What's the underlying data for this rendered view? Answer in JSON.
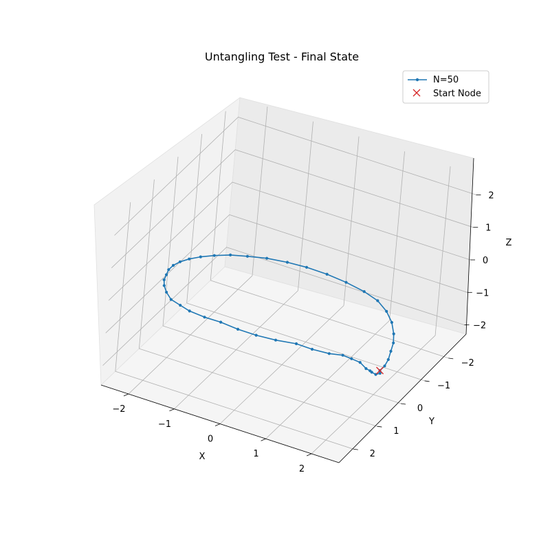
{
  "chart_data": {
    "type": "line3d",
    "title": "Untangling Test - Final State",
    "xlabel": "X",
    "ylabel": "Y",
    "zlabel": "Z",
    "xlim": [
      -2.6,
      2.6
    ],
    "ylim": [
      -2.6,
      2.6
    ],
    "zlim": [
      -2.6,
      2.6
    ],
    "x_ticks": [
      "−2",
      "−1",
      "0",
      "1",
      "2"
    ],
    "y_ticks": [
      "−2",
      "−1",
      "0",
      "1",
      "2"
    ],
    "z_ticks": [
      "−2",
      "−1",
      "0",
      "1",
      "2"
    ],
    "grid": true,
    "legend_position": "top-right",
    "colors": {
      "line": "#1f77b4",
      "start": "#d62728",
      "pane": "#f2f2f2",
      "grid": "#b0b0b0"
    },
    "series": [
      {
        "name": "N=50",
        "marker": "dot",
        "points": [
          [
            2.0,
            -0.2,
            -2.0
          ],
          [
            2.1,
            0.0,
            -1.9
          ],
          [
            2.15,
            0.3,
            -1.7
          ],
          [
            2.2,
            0.6,
            -1.4
          ],
          [
            2.3,
            0.9,
            -1.1
          ],
          [
            2.35,
            1.2,
            -0.8
          ],
          [
            2.35,
            1.5,
            -0.4
          ],
          [
            2.3,
            1.8,
            -0.1
          ],
          [
            2.2,
            2.0,
            0.1
          ],
          [
            2.0,
            2.2,
            0.2
          ],
          [
            1.7,
            2.35,
            0.3
          ],
          [
            1.4,
            2.45,
            0.4
          ],
          [
            1.0,
            2.55,
            0.4
          ],
          [
            0.6,
            2.6,
            0.4
          ],
          [
            0.2,
            2.6,
            0.4
          ],
          [
            -0.2,
            2.55,
            0.4
          ],
          [
            -0.6,
            2.45,
            0.3
          ],
          [
            -1.0,
            2.3,
            0.2
          ],
          [
            -1.3,
            2.1,
            0.1
          ],
          [
            -1.6,
            1.9,
            0.0
          ],
          [
            -1.85,
            1.6,
            -0.1
          ],
          [
            -2.05,
            1.3,
            -0.2
          ],
          [
            -2.2,
            1.0,
            -0.3
          ],
          [
            -2.3,
            0.7,
            -0.4
          ],
          [
            -2.4,
            0.4,
            -0.5
          ],
          [
            -2.45,
            0.1,
            -0.6
          ],
          [
            -2.45,
            -0.2,
            -0.7
          ],
          [
            -2.4,
            -0.5,
            -0.8
          ],
          [
            -2.3,
            -0.8,
            -0.9
          ],
          [
            -2.15,
            -1.1,
            -1.0
          ],
          [
            -1.95,
            -1.4,
            -1.1
          ],
          [
            -1.7,
            -1.65,
            -1.2
          ],
          [
            -1.4,
            -1.9,
            -1.3
          ],
          [
            -1.05,
            -2.1,
            -1.4
          ],
          [
            -0.7,
            -2.25,
            -1.5
          ],
          [
            -0.3,
            -2.35,
            -1.6
          ],
          [
            0.1,
            -2.4,
            -1.7
          ],
          [
            0.5,
            -2.4,
            -1.8
          ],
          [
            0.85,
            -2.3,
            -1.85
          ],
          [
            1.15,
            -2.1,
            -1.9
          ],
          [
            1.4,
            -1.85,
            -1.95
          ],
          [
            1.6,
            -1.55,
            -2.0
          ],
          [
            1.75,
            -1.25,
            -2.0
          ],
          [
            1.85,
            -0.95,
            -2.0
          ],
          [
            1.95,
            -0.65,
            -2.0
          ],
          [
            2.0,
            -0.4,
            -2.0
          ]
        ]
      },
      {
        "name": "Start Node",
        "marker": "x",
        "points": [
          [
            2.0,
            -0.2,
            -2.0
          ]
        ]
      }
    ]
  }
}
